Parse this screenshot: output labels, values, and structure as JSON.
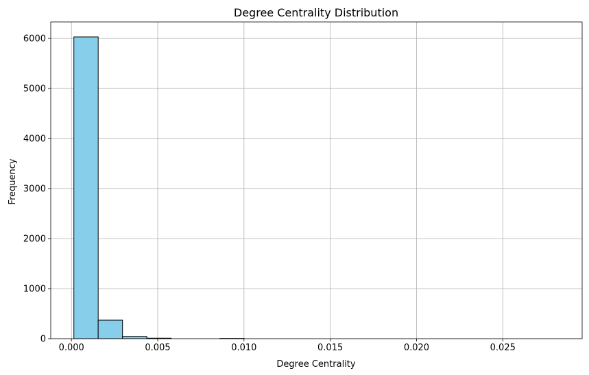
{
  "chart_data": {
    "type": "bar",
    "title": "Degree Centrality Distribution",
    "xlabel": "Degree Centrality",
    "ylabel": "Frequency",
    "bin_edges": [
      0.00014,
      0.00155,
      0.00296,
      0.00437,
      0.00578,
      0.00719,
      0.0086,
      0.01001,
      0.01142,
      0.01283,
      0.01424,
      0.01565,
      0.01706,
      0.01847,
      0.01988,
      0.02129,
      0.0227,
      0.02411,
      0.02552,
      0.02693,
      0.02834
    ],
    "values": [
      6030,
      370,
      45,
      10,
      0,
      0,
      5,
      0,
      0,
      0,
      0,
      0,
      0,
      0,
      0,
      0,
      0,
      0,
      0,
      0
    ],
    "xlim": [
      -0.0012,
      0.0296
    ],
    "ylim": [
      0,
      6330
    ],
    "xticks": [
      0.0,
      0.005,
      0.01,
      0.015,
      0.02,
      0.025
    ],
    "xtick_labels": [
      "0.000",
      "0.005",
      "0.010",
      "0.015",
      "0.020",
      "0.025"
    ],
    "yticks": [
      0,
      1000,
      2000,
      3000,
      4000,
      5000,
      6000
    ],
    "ytick_labels": [
      "0",
      "1000",
      "2000",
      "3000",
      "4000",
      "5000",
      "6000"
    ],
    "grid": true,
    "bar_color": "#87ceeb",
    "edge_color": "#000000",
    "grid_color": "#b0b0b0"
  }
}
